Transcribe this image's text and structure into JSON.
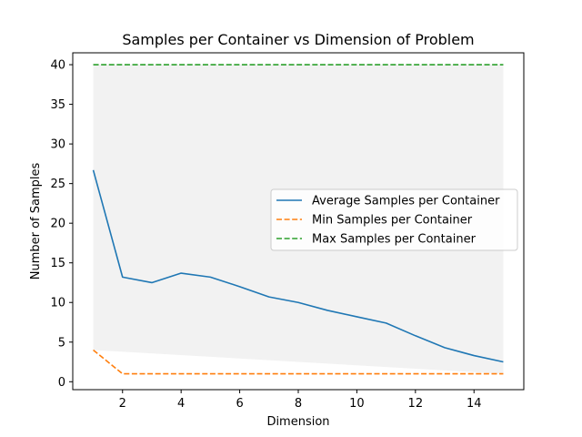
{
  "chart_data": {
    "type": "line",
    "title": "Samples per Container vs Dimension of Problem",
    "xlabel": "Dimension",
    "ylabel": "Number of Samples",
    "xlim": [
      0.3,
      15.7
    ],
    "ylim": [
      -1.0,
      41.5
    ],
    "xticks": [
      2,
      4,
      6,
      8,
      10,
      12,
      14
    ],
    "yticks": [
      0,
      5,
      10,
      15,
      20,
      25,
      30,
      35,
      40
    ],
    "grid": false,
    "legend_position": "center-right",
    "shaded_band": {
      "x": [
        1,
        15
      ],
      "y_lower": [
        4,
        1
      ],
      "y_upper": [
        40,
        40
      ],
      "color": "#bdbdbd"
    },
    "x": [
      1,
      2,
      3,
      4,
      5,
      6,
      7,
      8,
      9,
      10,
      11,
      12,
      13,
      14,
      15
    ],
    "series": [
      {
        "name": "Average Samples per Container",
        "color": "#1f77b4",
        "style": "solid",
        "values": [
          26.7,
          13.2,
          12.5,
          13.7,
          13.2,
          12.0,
          10.7,
          10.0,
          9.0,
          8.2,
          7.4,
          5.8,
          4.3,
          3.3,
          2.5
        ]
      },
      {
        "name": "Min Samples per Container",
        "color": "#ff7f0e",
        "style": "dashed",
        "values": [
          4,
          1,
          1,
          1,
          1,
          1,
          1,
          1,
          1,
          1,
          1,
          1,
          1,
          1,
          1
        ]
      },
      {
        "name": "Max Samples per Container",
        "color": "#2ca02c",
        "style": "dashed",
        "values": [
          40,
          40,
          40,
          40,
          40,
          40,
          40,
          40,
          40,
          40,
          40,
          40,
          40,
          40,
          40
        ]
      }
    ]
  }
}
